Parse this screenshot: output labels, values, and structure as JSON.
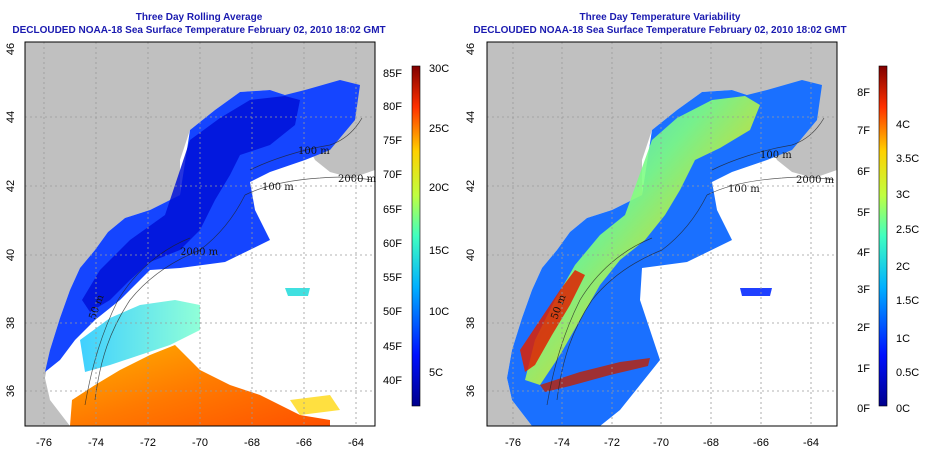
{
  "left_panel": {
    "title_line1": "Three Day Rolling Average",
    "title_line2": "DECLOUDED NOAA-18 Sea Surface Temperature February 02, 2010 18:02 GMT",
    "depth_labels": [
      "100 m",
      "100 m",
      "2000 m",
      "2000 m",
      "50 m"
    ],
    "colorbar": {
      "f_labels": [
        "85F",
        "80F",
        "75F",
        "70F",
        "65F",
        "60F",
        "55F",
        "50F",
        "45F",
        "40F"
      ],
      "c_labels": [
        "30C",
        "25C",
        "20C",
        "15C",
        "10C",
        "5C"
      ]
    }
  },
  "right_panel": {
    "title_line1": "Three Day Temperature Variability",
    "title_line2": "DECLOUDED NOAA-18 Sea Surface Temperature February 02, 2010 18:02 GMT",
    "depth_labels": [
      "100 m",
      "100 m",
      "2000 m",
      "50 m"
    ],
    "colorbar": {
      "f_labels": [
        "8F",
        "7F",
        "6F",
        "5F",
        "4F",
        "3F",
        "2F",
        "1F",
        "0F"
      ],
      "c_labels": [
        "4C",
        "3.5C",
        "3C",
        "2.5C",
        "2C",
        "1.5C",
        "1C",
        "0.5C",
        "0C"
      ]
    }
  },
  "axes": {
    "lon_labels": [
      "-76",
      "-74",
      "-72",
      "-70",
      "-68",
      "-66",
      "-64"
    ],
    "lat_labels": [
      "36",
      "38",
      "40",
      "42",
      "44",
      "46"
    ]
  },
  "colors": {
    "land": "#c0c0c0",
    "ocean_nodata": "#ffffff",
    "title": "#1a1ab0",
    "grid": "#9a9a9a"
  }
}
